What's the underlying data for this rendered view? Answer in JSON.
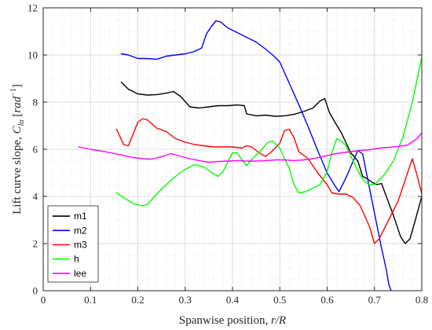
{
  "chart_data": {
    "type": "line",
    "title": "",
    "xlabel": "Spanwise position, r/R",
    "ylabel": "Lift curve slope, C_lα [rad^-1]",
    "xlim": [
      0,
      0.8
    ],
    "ylim": [
      0,
      12
    ],
    "x_ticks": [
      "0",
      "0.1",
      "0.2",
      "0.3",
      "0.4",
      "0.5",
      "0.6",
      "0.7",
      "0.8"
    ],
    "y_ticks": [
      "0",
      "2",
      "4",
      "6",
      "8",
      "10",
      "12"
    ],
    "grid": true,
    "minor_grid": true,
    "legend_position": "bottom-left",
    "series": [
      {
        "name": "m1",
        "color": "#000000",
        "x": [
          0.165,
          0.18,
          0.2,
          0.22,
          0.24,
          0.26,
          0.275,
          0.29,
          0.31,
          0.33,
          0.35,
          0.37,
          0.39,
          0.41,
          0.425,
          0.43,
          0.45,
          0.47,
          0.49,
          0.51,
          0.53,
          0.55,
          0.57,
          0.585,
          0.595,
          0.605,
          0.615,
          0.63,
          0.65,
          0.665,
          0.675,
          0.685,
          0.695,
          0.705,
          0.715,
          0.725,
          0.74,
          0.755,
          0.765,
          0.775,
          0.785,
          0.8
        ],
        "y": [
          8.85,
          8.55,
          8.35,
          8.3,
          8.32,
          8.38,
          8.45,
          8.25,
          7.8,
          7.75,
          7.8,
          7.85,
          7.85,
          7.88,
          7.85,
          7.5,
          7.42,
          7.45,
          7.4,
          7.42,
          7.48,
          7.6,
          7.75,
          8.05,
          8.15,
          7.55,
          7.2,
          6.7,
          5.85,
          5.5,
          4.85,
          4.75,
          4.6,
          4.5,
          4.55,
          4.0,
          3.2,
          2.3,
          2.0,
          2.2,
          2.9,
          4.0
        ]
      },
      {
        "name": "m2",
        "color": "#0000ff",
        "x": [
          0.165,
          0.18,
          0.2,
          0.22,
          0.24,
          0.26,
          0.28,
          0.3,
          0.32,
          0.335,
          0.345,
          0.355,
          0.365,
          0.375,
          0.39,
          0.41,
          0.43,
          0.45,
          0.47,
          0.485,
          0.5,
          0.52,
          0.54,
          0.56,
          0.58,
          0.6,
          0.615,
          0.625,
          0.64,
          0.655,
          0.665,
          0.675,
          0.685,
          0.695,
          0.705,
          0.715,
          0.725,
          0.73,
          0.735
        ],
        "y": [
          10.05,
          10.0,
          9.85,
          9.85,
          9.82,
          9.95,
          10.0,
          10.05,
          10.15,
          10.3,
          10.9,
          11.2,
          11.45,
          11.4,
          11.15,
          10.95,
          10.75,
          10.55,
          10.25,
          10.0,
          9.7,
          8.8,
          7.9,
          6.95,
          5.95,
          5.0,
          4.5,
          4.2,
          4.8,
          5.5,
          5.95,
          5.8,
          4.8,
          3.8,
          2.8,
          1.8,
          0.9,
          0.3,
          0.0
        ]
      },
      {
        "name": "m3",
        "color": "#ff0000",
        "x": [
          0.155,
          0.17,
          0.18,
          0.19,
          0.2,
          0.21,
          0.22,
          0.24,
          0.26,
          0.28,
          0.3,
          0.32,
          0.34,
          0.36,
          0.38,
          0.4,
          0.42,
          0.43,
          0.44,
          0.46,
          0.47,
          0.48,
          0.5,
          0.51,
          0.52,
          0.53,
          0.54,
          0.56,
          0.58,
          0.6,
          0.61,
          0.625,
          0.64,
          0.655,
          0.67,
          0.69,
          0.7,
          0.71,
          0.73,
          0.75,
          0.77,
          0.78,
          0.79,
          0.8
        ],
        "y": [
          6.85,
          6.2,
          6.15,
          6.65,
          7.15,
          7.3,
          7.25,
          6.9,
          6.75,
          6.45,
          6.3,
          6.2,
          6.15,
          6.1,
          6.1,
          6.1,
          6.05,
          6.15,
          6.1,
          5.8,
          5.7,
          5.85,
          6.25,
          6.8,
          6.85,
          6.5,
          5.9,
          5.6,
          5.0,
          4.5,
          4.15,
          4.1,
          4.1,
          3.95,
          3.6,
          2.7,
          2.0,
          2.2,
          3.0,
          3.8,
          5.0,
          5.6,
          4.9,
          4.1
        ]
      },
      {
        "name": "h",
        "color": "#00ff00",
        "x": [
          0.155,
          0.17,
          0.19,
          0.21,
          0.22,
          0.24,
          0.26,
          0.28,
          0.3,
          0.32,
          0.34,
          0.36,
          0.37,
          0.38,
          0.39,
          0.4,
          0.41,
          0.42,
          0.43,
          0.44,
          0.46,
          0.475,
          0.485,
          0.5,
          0.51,
          0.52,
          0.53,
          0.54,
          0.555,
          0.565,
          0.585,
          0.6,
          0.61,
          0.62,
          0.63,
          0.64,
          0.65,
          0.66,
          0.67,
          0.68,
          0.69,
          0.7,
          0.71,
          0.72,
          0.74,
          0.76,
          0.78,
          0.8
        ],
        "y": [
          4.15,
          3.95,
          3.7,
          3.6,
          3.65,
          4.1,
          4.5,
          4.85,
          5.15,
          5.35,
          5.25,
          4.95,
          4.85,
          5.05,
          5.45,
          5.85,
          5.85,
          5.55,
          5.3,
          5.55,
          5.95,
          6.3,
          6.35,
          6.05,
          5.6,
          5.2,
          4.5,
          4.15,
          4.2,
          4.3,
          4.5,
          5.05,
          5.85,
          6.45,
          6.35,
          6.15,
          5.7,
          5.3,
          4.9,
          4.6,
          4.5,
          4.5,
          4.7,
          4.9,
          5.5,
          6.5,
          8.0,
          9.9
        ]
      },
      {
        "name": "lee",
        "color": "#ff00ff",
        "x": [
          0.075,
          0.1,
          0.13,
          0.16,
          0.19,
          0.21,
          0.23,
          0.25,
          0.27,
          0.29,
          0.31,
          0.33,
          0.35,
          0.37,
          0.39,
          0.41,
          0.43,
          0.45,
          0.47,
          0.49,
          0.51,
          0.53,
          0.55,
          0.57,
          0.59,
          0.61,
          0.63,
          0.65,
          0.67,
          0.69,
          0.71,
          0.73,
          0.75,
          0.77,
          0.79,
          0.8
        ],
        "y": [
          6.1,
          6.0,
          5.9,
          5.78,
          5.65,
          5.6,
          5.58,
          5.68,
          5.82,
          5.7,
          5.6,
          5.52,
          5.45,
          5.48,
          5.5,
          5.52,
          5.5,
          5.5,
          5.52,
          5.55,
          5.55,
          5.52,
          5.55,
          5.6,
          5.68,
          5.78,
          5.85,
          5.9,
          5.95,
          5.98,
          6.05,
          6.08,
          6.12,
          6.18,
          6.45,
          6.7
        ]
      }
    ]
  }
}
